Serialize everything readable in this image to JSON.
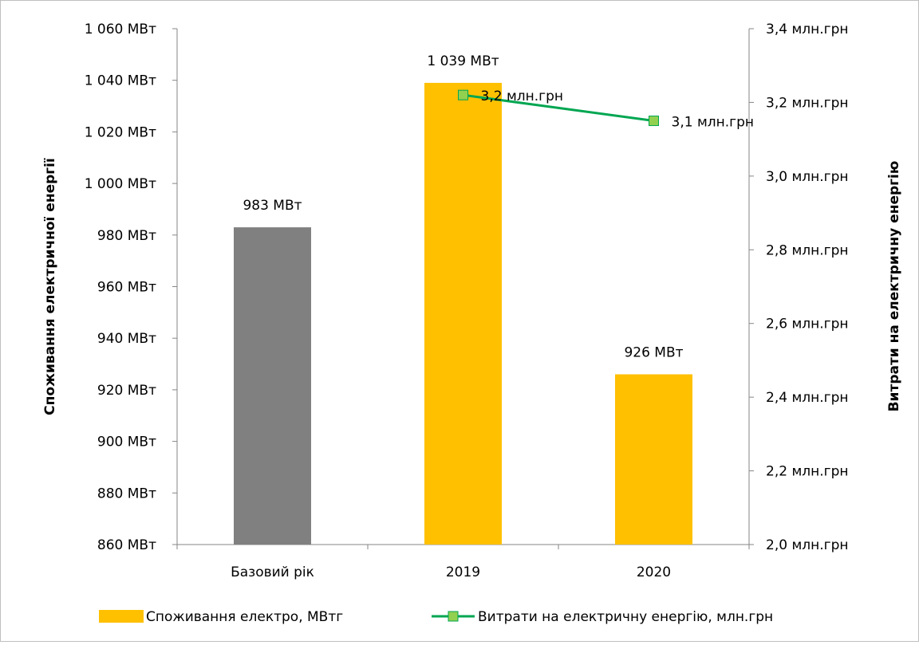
{
  "chart_data": {
    "type": "bar",
    "categories": [
      "Базовий рік",
      "2019",
      "2020"
    ],
    "series": [
      {
        "name": "Споживання електро, МВтг",
        "kind": "bar",
        "axis": "left",
        "values": [
          983,
          1039,
          926
        ],
        "labels": [
          "983 МВт",
          "1 039 МВт",
          "926 МВт"
        ],
        "colors": [
          "#808080",
          "#ffc000",
          "#ffc000"
        ]
      },
      {
        "name": "Витрати на електричну енергію, млн.грн",
        "kind": "line",
        "axis": "right",
        "values": [
          null,
          3.22,
          3.15
        ],
        "labels": [
          "",
          "3,2 млн.грн",
          "3,1 млн.грн"
        ],
        "line_color": "#00a651",
        "marker_color": "#92d050"
      }
    ],
    "y_left": {
      "label": "Споживання електричної енергії",
      "ylim": [
        860,
        1060
      ],
      "ticks": [
        860,
        880,
        900,
        920,
        940,
        960,
        980,
        1000,
        1020,
        1040,
        1060
      ],
      "tick_labels": [
        "860 МВт",
        "880 МВт",
        "900 МВт",
        "920 МВт",
        "940 МВт",
        "960 МВт",
        "980 МВт",
        "1 000 МВт",
        "1 020 МВт",
        "1 040 МВт",
        "1 060 МВт"
      ]
    },
    "y_right": {
      "label": "Витрати на електричну енергію",
      "ylim": [
        2.0,
        3.4
      ],
      "ticks": [
        2.0,
        2.2,
        2.4,
        2.6,
        2.8,
        3.0,
        3.2,
        3.4
      ],
      "tick_labels": [
        "2,0 млн.грн",
        "2,2 млн.грн",
        "2,4 млн.грн",
        "2,6 млн.грн",
        "2,8 млн.грн",
        "3,0 млн.грн",
        "3,2 млн.грн",
        "3,4 млн.грн"
      ]
    },
    "grid": false,
    "legend": "bottom"
  }
}
